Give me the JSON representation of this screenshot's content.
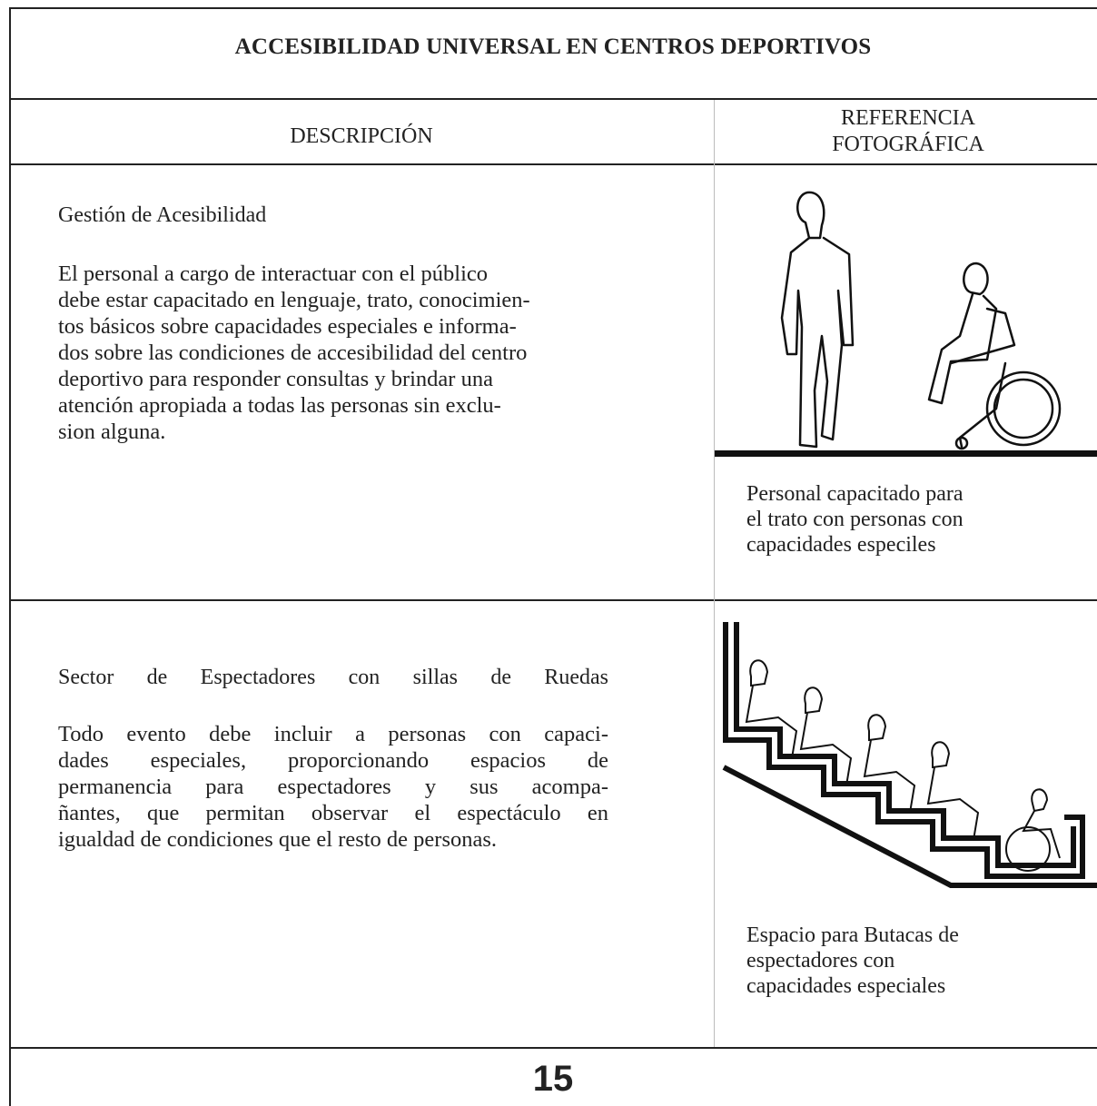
{
  "header": {
    "title": "ACCESIBILIDAD UNIVERSAL EN CENTROS DEPORTIVOS"
  },
  "columns": [
    "DESCRIPCIÓN",
    "REFERENCIA FOTOGRÁFICA"
  ],
  "rows": [
    {
      "heading": "Gestión de Acesibilidad",
      "paragraph": [
        "El personal a cargo de interactuar con el público",
        "debe estar capacitado en lenguaje, trato, conocimien-",
        "tos básicos sobre capacidades especiales e informa-",
        "dos sobre las condiciones de accesibilidad del centro",
        "deportivo para responder consultas y brindar una",
        "atención apropiada a todas las personas sin exclu-",
        "sion alguna."
      ],
      "caption": [
        "Personal capacitado para",
        "el trato con personas con",
        "capacidades especiles"
      ]
    },
    {
      "heading": "Sector de Espectadores con sillas de Ruedas",
      "paragraph": [
        "Todo evento debe incluir a personas con capaci-",
        "dades especiales, proporcionando espacios de",
        "permanencia para espectadores y sus acompa-",
        "ñantes, que permitan observar el espectáculo en",
        "igualdad de condiciones que el resto de personas."
      ],
      "caption": [
        "Espacio para Butacas de",
        "espectadores con",
        "capacidades especiales"
      ]
    }
  ],
  "footer": {
    "page_number": "15"
  }
}
